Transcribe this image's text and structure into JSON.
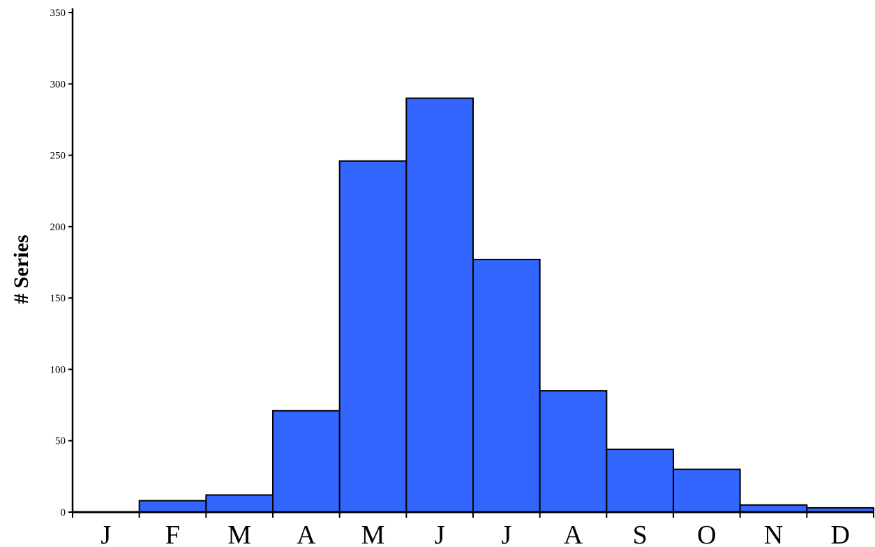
{
  "chart_data": {
    "type": "bar",
    "title": "",
    "xlabel": "",
    "ylabel": "# Series",
    "categories": [
      "J",
      "F",
      "M",
      "A",
      "M",
      "J",
      "J",
      "A",
      "S",
      "O",
      "N",
      "D"
    ],
    "values": [
      0,
      8,
      12,
      71,
      246,
      290,
      177,
      85,
      44,
      30,
      5,
      3
    ],
    "ylim": [
      0,
      350
    ],
    "yticks": [
      0,
      50,
      100,
      150,
      200,
      250,
      300,
      350
    ],
    "grid": false,
    "legend": "none",
    "bar_color": "#3366ff",
    "bar_edge_color": "#000000"
  }
}
